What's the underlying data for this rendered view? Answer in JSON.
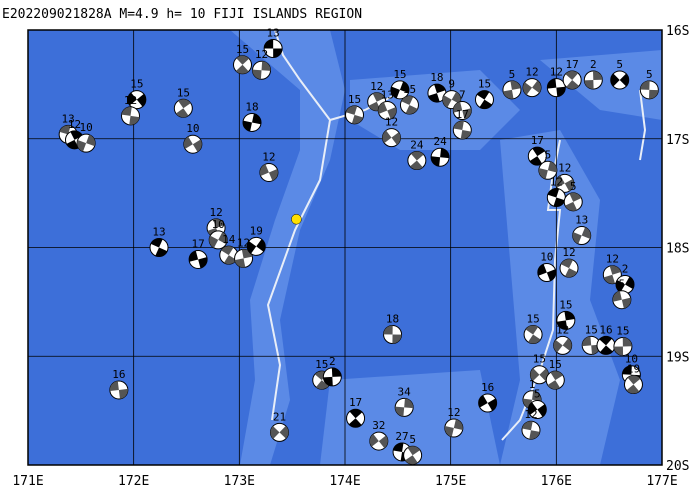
{
  "title": "E202209021828A M=4.9 h= 10 FIJI ISLANDS REGION",
  "lonlim": [
    171,
    177
  ],
  "latlim": [
    16,
    20
  ],
  "lonticks": [
    {
      "value": 171,
      "label": "171E"
    },
    {
      "value": 172,
      "label": "172E"
    },
    {
      "value": 173,
      "label": "173E"
    },
    {
      "value": 174,
      "label": "174E"
    },
    {
      "value": 175,
      "label": "175E"
    },
    {
      "value": 176,
      "label": "176E"
    },
    {
      "value": 177,
      "label": "177E"
    }
  ],
  "latticks": [
    {
      "value": 16,
      "label": "16S"
    },
    {
      "value": 17,
      "label": "17S"
    },
    {
      "value": 18,
      "label": "18S"
    },
    {
      "value": 19,
      "label": "19S"
    },
    {
      "value": 20,
      "label": "20S"
    }
  ],
  "epicenter": {
    "lon": 173.54,
    "lat": 17.74,
    "color": "#ffe000"
  },
  "events": [
    {
      "lon": 173.32,
      "lat": 16.17,
      "depth": 13
    },
    {
      "lon": 173.03,
      "lat": 16.32,
      "depth": 15
    },
    {
      "lon": 173.21,
      "lat": 16.37,
      "depth": 12
    },
    {
      "lon": 172.03,
      "lat": 16.64,
      "depth": 15
    },
    {
      "lon": 171.97,
      "lat": 16.79,
      "depth": 12
    },
    {
      "lon": 172.47,
      "lat": 16.72,
      "depth": 15
    },
    {
      "lon": 173.12,
      "lat": 16.85,
      "depth": 18
    },
    {
      "lon": 172.56,
      "lat": 17.05,
      "depth": 10
    },
    {
      "lon": 171.38,
      "lat": 16.96,
      "depth": 13
    },
    {
      "lon": 171.44,
      "lat": 17.01,
      "depth": 12
    },
    {
      "lon": 171.55,
      "lat": 17.04,
      "depth": 10
    },
    {
      "lon": 173.28,
      "lat": 17.31,
      "depth": 12
    },
    {
      "lon": 172.24,
      "lat": 18.0,
      "depth": 13
    },
    {
      "lon": 172.78,
      "lat": 17.82,
      "depth": 12
    },
    {
      "lon": 172.8,
      "lat": 17.93,
      "depth": 10
    },
    {
      "lon": 172.61,
      "lat": 18.11,
      "depth": 17
    },
    {
      "lon": 172.9,
      "lat": 18.07,
      "depth": 14
    },
    {
      "lon": 173.04,
      "lat": 18.1,
      "depth": 12
    },
    {
      "lon": 173.16,
      "lat": 17.99,
      "depth": 19
    },
    {
      "lon": 171.86,
      "lat": 19.31,
      "depth": 16
    },
    {
      "lon": 173.78,
      "lat": 19.22,
      "depth": 15
    },
    {
      "lon": 173.88,
      "lat": 19.19,
      "depth": 2
    },
    {
      "lon": 173.38,
      "lat": 19.7,
      "depth": 21
    },
    {
      "lon": 174.45,
      "lat": 18.8,
      "depth": 18
    },
    {
      "lon": 174.1,
      "lat": 19.57,
      "depth": 17
    },
    {
      "lon": 174.56,
      "lat": 19.47,
      "depth": 34
    },
    {
      "lon": 174.32,
      "lat": 19.78,
      "depth": 32
    },
    {
      "lon": 174.54,
      "lat": 19.88,
      "depth": 27
    },
    {
      "lon": 174.64,
      "lat": 19.91,
      "depth": 5
    },
    {
      "lon": 175.03,
      "lat": 19.66,
      "depth": 12
    },
    {
      "lon": 175.35,
      "lat": 19.43,
      "depth": 16
    },
    {
      "lon": 174.09,
      "lat": 16.78,
      "depth": 15
    },
    {
      "lon": 174.3,
      "lat": 16.66,
      "depth": 12
    },
    {
      "lon": 174.52,
      "lat": 16.55,
      "depth": 15
    },
    {
      "lon": 174.4,
      "lat": 16.74,
      "depth": 13
    },
    {
      "lon": 174.61,
      "lat": 16.69,
      "depth": 15
    },
    {
      "lon": 174.87,
      "lat": 16.58,
      "depth": 18
    },
    {
      "lon": 175.01,
      "lat": 16.64,
      "depth": 9
    },
    {
      "lon": 175.11,
      "lat": 16.74,
      "depth": 7
    },
    {
      "lon": 175.32,
      "lat": 16.64,
      "depth": 15
    },
    {
      "lon": 175.58,
      "lat": 16.55,
      "depth": 5
    },
    {
      "lon": 175.77,
      "lat": 16.53,
      "depth": 12
    },
    {
      "lon": 176.0,
      "lat": 16.53,
      "depth": 12
    },
    {
      "lon": 176.15,
      "lat": 16.46,
      "depth": 17
    },
    {
      "lon": 176.35,
      "lat": 16.46,
      "depth": 2
    },
    {
      "lon": 176.6,
      "lat": 16.46,
      "depth": 5
    },
    {
      "lon": 176.88,
      "lat": 16.55,
      "depth": 5
    },
    {
      "lon": 174.68,
      "lat": 17.2,
      "depth": 24
    },
    {
      "lon": 174.9,
      "lat": 17.17,
      "depth": 24
    },
    {
      "lon": 174.44,
      "lat": 16.99,
      "depth": 12
    },
    {
      "lon": 175.11,
      "lat": 16.92,
      "depth": 17
    },
    {
      "lon": 175.82,
      "lat": 17.16,
      "depth": 17
    },
    {
      "lon": 175.92,
      "lat": 17.29,
      "depth": 5
    },
    {
      "lon": 176.08,
      "lat": 17.41,
      "depth": 12
    },
    {
      "lon": 176.0,
      "lat": 17.54,
      "depth": 12
    },
    {
      "lon": 176.16,
      "lat": 17.58,
      "depth": 5
    },
    {
      "lon": 176.24,
      "lat": 17.89,
      "depth": 13
    },
    {
      "lon": 175.91,
      "lat": 18.23,
      "depth": 10
    },
    {
      "lon": 176.12,
      "lat": 18.19,
      "depth": 12
    },
    {
      "lon": 176.53,
      "lat": 18.25,
      "depth": 12
    },
    {
      "lon": 176.65,
      "lat": 18.34,
      "depth": 2
    },
    {
      "lon": 176.62,
      "lat": 18.48,
      "depth": 5
    },
    {
      "lon": 175.78,
      "lat": 18.8,
      "depth": 15
    },
    {
      "lon": 176.09,
      "lat": 18.67,
      "depth": 15
    },
    {
      "lon": 176.06,
      "lat": 18.9,
      "depth": 12
    },
    {
      "lon": 176.33,
      "lat": 18.9,
      "depth": 15
    },
    {
      "lon": 176.47,
      "lat": 18.9,
      "depth": 16
    },
    {
      "lon": 176.63,
      "lat": 18.91,
      "depth": 15
    },
    {
      "lon": 175.84,
      "lat": 19.17,
      "depth": 15
    },
    {
      "lon": 176.71,
      "lat": 19.17,
      "depth": 10
    },
    {
      "lon": 176.73,
      "lat": 19.26,
      "depth": 19
    },
    {
      "lon": 175.77,
      "lat": 19.4,
      "depth": 1
    },
    {
      "lon": 175.82,
      "lat": 19.49,
      "depth": 5
    },
    {
      "lon": 175.76,
      "lat": 19.68,
      "depth": 12
    },
    {
      "lon": 175.99,
      "lat": 19.22,
      "depth": 15
    }
  ]
}
